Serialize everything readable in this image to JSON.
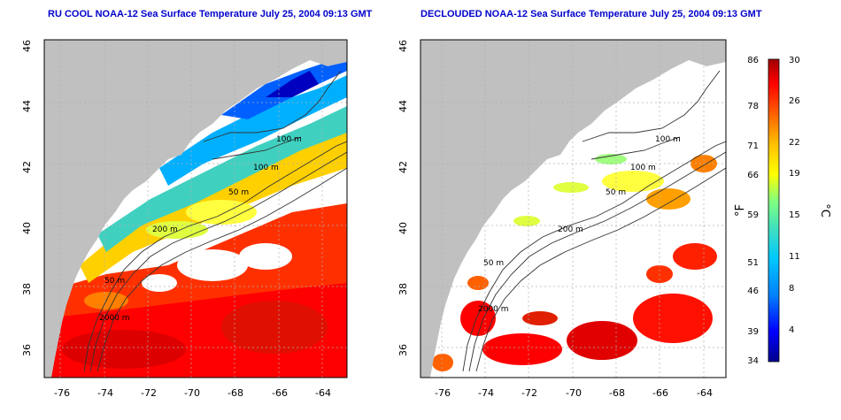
{
  "panels": [
    {
      "title": "RU COOL NOAA-12 Sea Surface Temperature July 25, 2004 09:13 GMT",
      "variant": "full",
      "contour_labels": [
        "100 m",
        "100 m",
        "50 m",
        "200 m",
        "50 m",
        "2000 m"
      ]
    },
    {
      "title": "DECLOUDED NOAA-12 Sea Surface Temperature July 25, 2004 09:13 GMT",
      "variant": "declouded",
      "contour_labels": [
        "100 m",
        "100 m",
        "50 m",
        "200 m",
        "50 m",
        "2000 m"
      ]
    }
  ],
  "axes": {
    "lat_ticks": [
      "46",
      "44",
      "42",
      "40",
      "38",
      "36"
    ],
    "lat_values": [
      46,
      44,
      42,
      40,
      38,
      36
    ],
    "lat_range": [
      35,
      46
    ],
    "lon_ticks": [
      "-76",
      "-74",
      "-72",
      "-70",
      "-68",
      "-66",
      "-64"
    ],
    "lon_values": [
      -76,
      -74,
      -72,
      -70,
      -68,
      -66,
      -64
    ],
    "lon_range": [
      -77.3,
      -63
    ]
  },
  "colorbar": {
    "fahrenheit_label": "°F",
    "celsius_label": "°C",
    "f_ticks": [
      "86",
      "78",
      "71",
      "66",
      "59",
      "51",
      "46",
      "39",
      "34"
    ],
    "c_ticks": [
      "30",
      "26",
      "22",
      "19",
      "15",
      "11",
      "8",
      "4"
    ],
    "colors": [
      "#00008b",
      "#0000ff",
      "#0080ff",
      "#00c8ff",
      "#40e0c0",
      "#80ff80",
      "#ffff00",
      "#ffc000",
      "#ff6000",
      "#ff0000",
      "#a00000"
    ]
  },
  "colors": {
    "land": "#c0c0c0",
    "ocean": "#ffffff",
    "title": "#0000cc",
    "contour": "#333333",
    "grid": "#b0b0b0"
  }
}
